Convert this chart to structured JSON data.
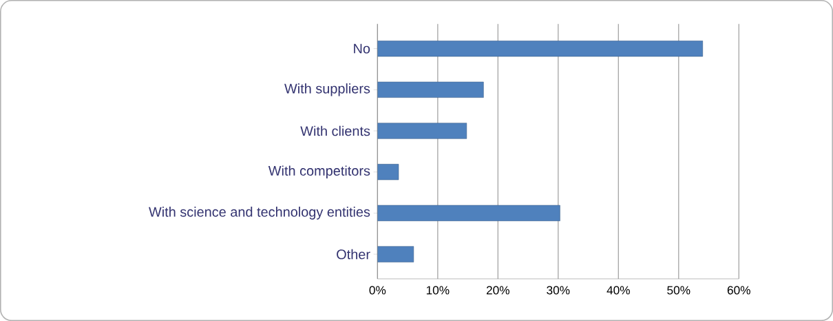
{
  "chart_data": {
    "type": "bar",
    "orientation": "horizontal",
    "categories": [
      "No",
      "With suppliers",
      "With clients",
      "With competitors",
      "With science and technology entities",
      "Other"
    ],
    "values": [
      0.54,
      0.176,
      0.148,
      0.035,
      0.303,
      0.06
    ],
    "color": "#4f81bd",
    "xlim": [
      0,
      0.6
    ],
    "xticks": [
      {
        "value": 0,
        "label": "0%"
      },
      {
        "value": 0.1,
        "label": "10%"
      },
      {
        "value": 0.2,
        "label": "20%"
      },
      {
        "value": 0.3,
        "label": "30%"
      },
      {
        "value": 0.4,
        "label": "40%"
      },
      {
        "value": 0.5,
        "label": "50%"
      },
      {
        "value": 0.6,
        "label": "60%"
      }
    ],
    "grid": "x"
  }
}
